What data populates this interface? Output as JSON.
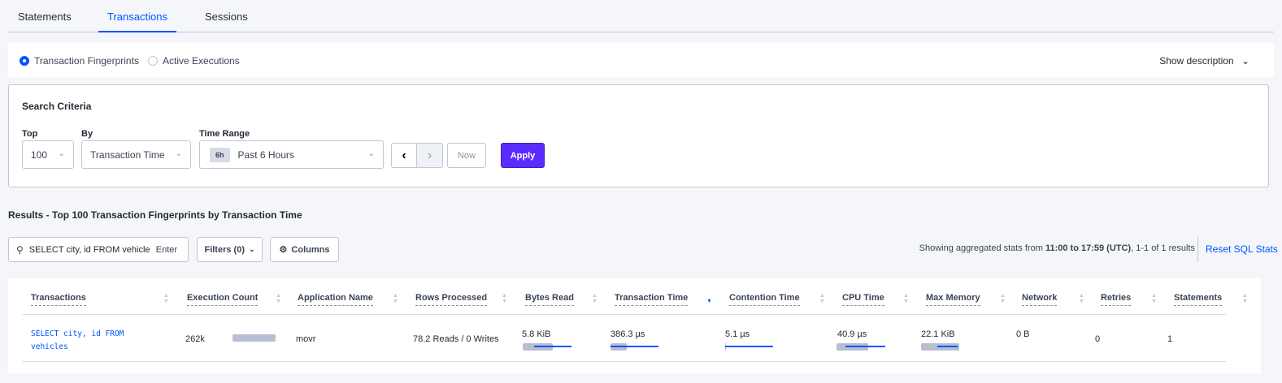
{
  "tabs": [
    {
      "label": "Statements"
    },
    {
      "label": "Transactions",
      "active": true
    },
    {
      "label": "Sessions"
    }
  ],
  "view": {
    "options": [
      "Transaction Fingerprints",
      "Active Executions"
    ],
    "selected": "Transaction Fingerprints",
    "show_description": "Show description"
  },
  "criteria": {
    "title": "Search Criteria",
    "top_label": "Top",
    "top_value": "100",
    "by_label": "By",
    "by_value": "Transaction Time",
    "range_label": "Time Range",
    "range_chip": "6h",
    "range_value": "Past 6 Hours",
    "now": "Now",
    "apply": "Apply"
  },
  "results": {
    "title": "Results - Top 100 Transaction Fingerprints by Transaction Time",
    "search_value": "SELECT city, id FROM vehicles W",
    "search_enter": "Enter",
    "filters": "Filters (0)",
    "columns": "Columns",
    "info_prefix": "Showing aggregated stats from ",
    "info_bold": "11:00 to 17:59 (UTC)",
    "info_suffix": ", 1-1 of 1 results",
    "reset": "Reset SQL Stats"
  },
  "table": {
    "headers": [
      "Transactions",
      "Execution Count",
      "Application Name",
      "Rows Processed",
      "Bytes Read",
      "Transaction Time",
      "Contention Time",
      "CPU Time",
      "Max Memory",
      "Network",
      "Retries",
      "Statements"
    ],
    "sorted_column": "Transaction Time",
    "sort_direction": "descending",
    "rows": [
      {
        "transaction": "SELECT city, id FROM vehicles",
        "execution_count": "262k",
        "application": "movr",
        "rows_processed": "78.2 Reads / 0 Writes",
        "bytes_read": "5.8 KiB",
        "transaction_time": "386.3 µs",
        "contention_time": "5.1 µs",
        "cpu_time": "40.9 µs",
        "max_memory": "22.1 KiB",
        "network": "0 B",
        "retries": "0",
        "statements": "1"
      }
    ]
  },
  "colors": {
    "accent": "#0055ff",
    "apply": "#5b2cff"
  }
}
